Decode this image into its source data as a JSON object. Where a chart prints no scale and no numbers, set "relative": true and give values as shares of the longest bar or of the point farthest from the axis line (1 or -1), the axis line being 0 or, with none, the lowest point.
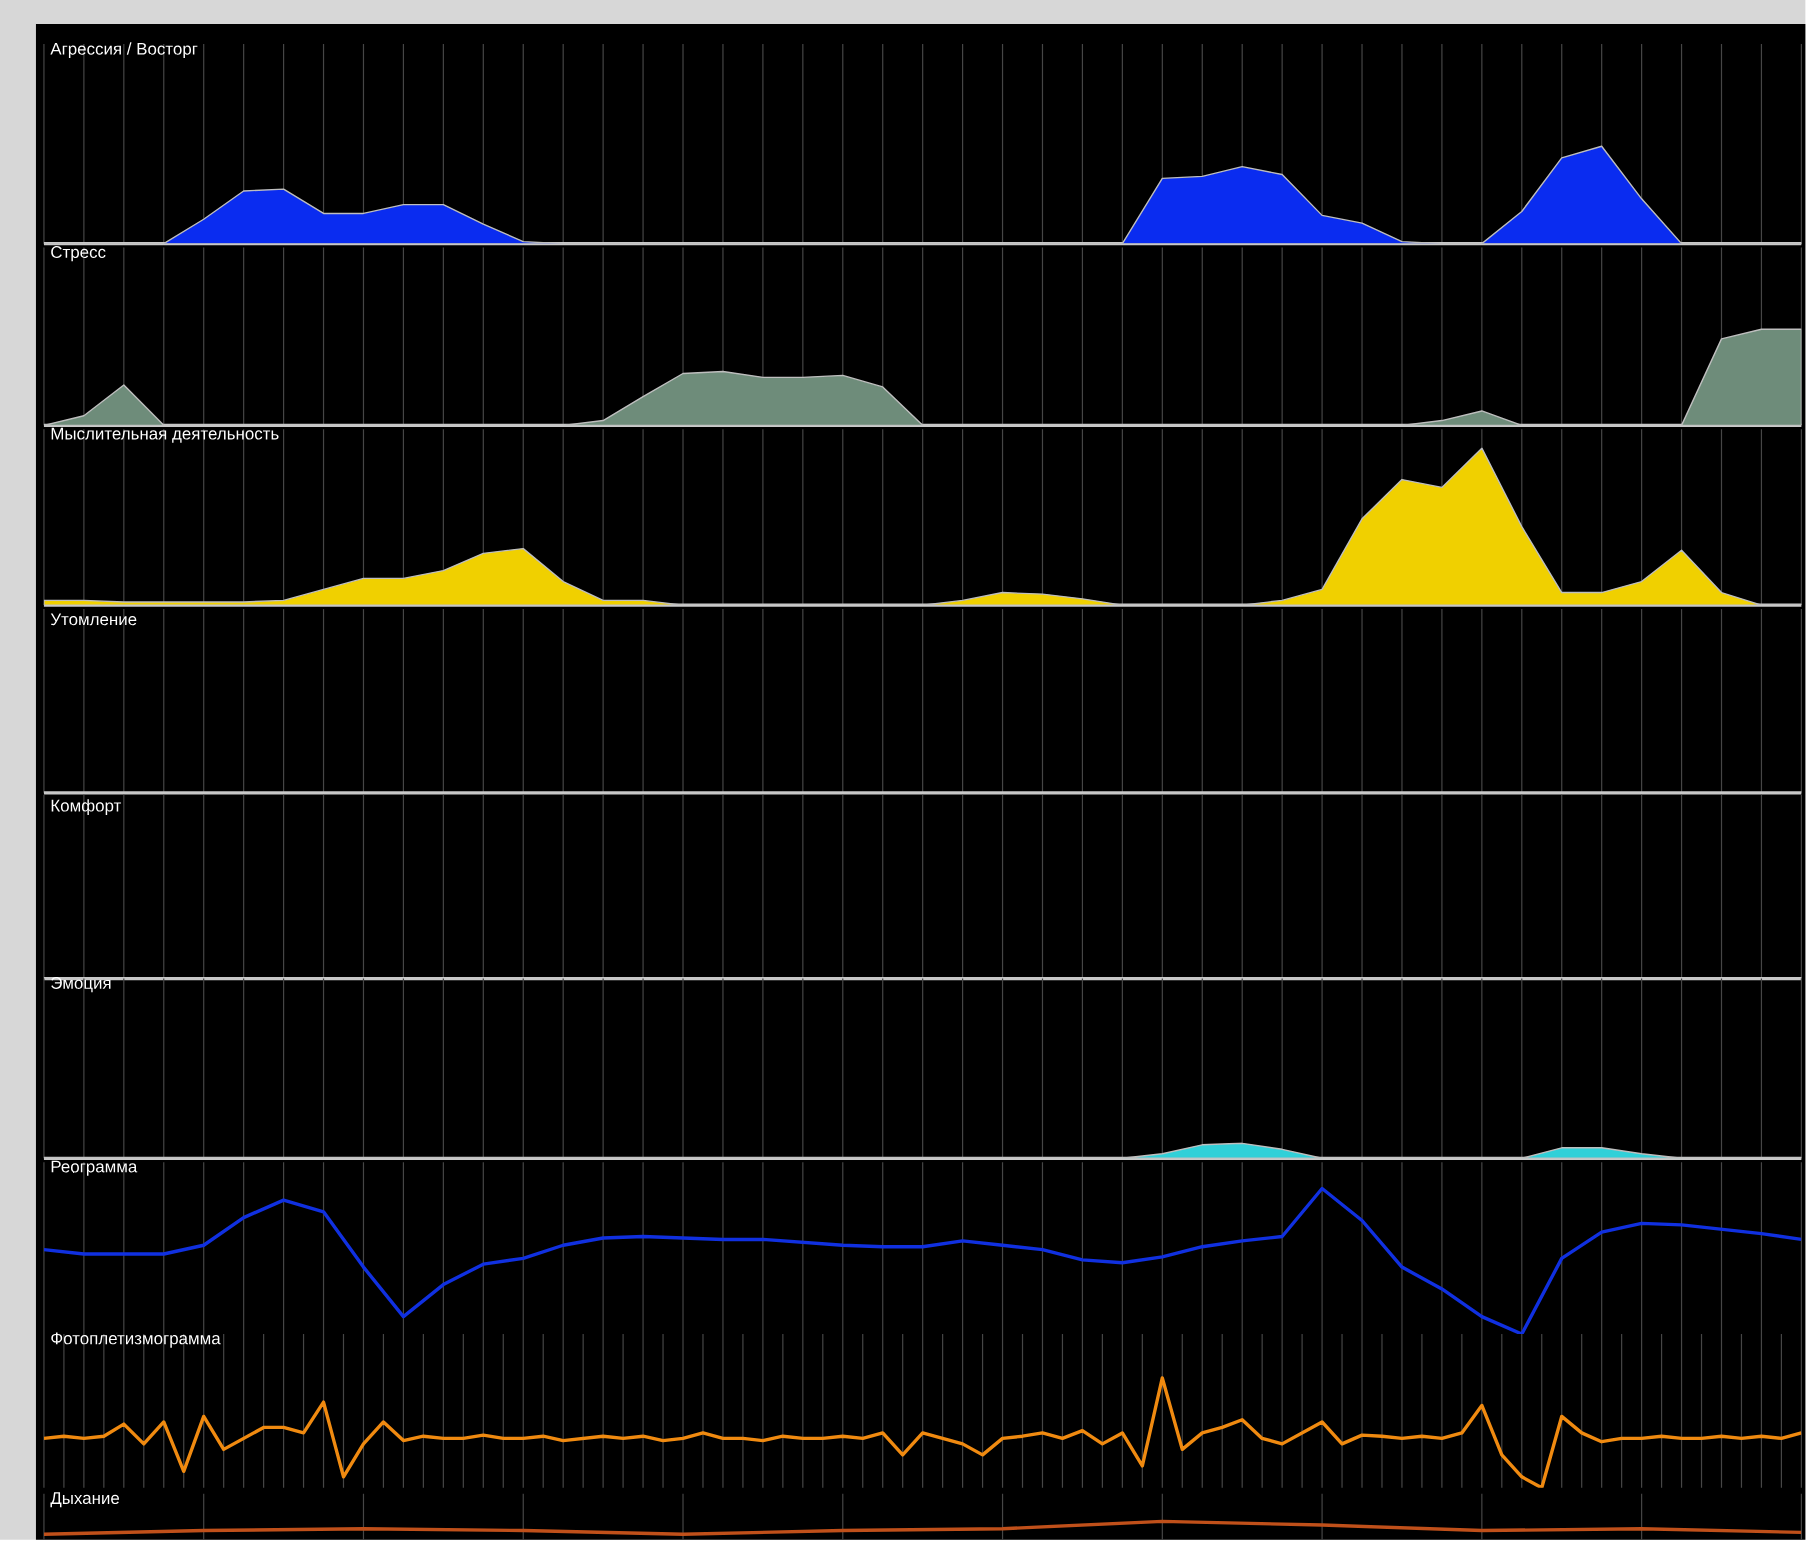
{
  "chart_data": [
    {
      "type": "area",
      "title": "Агрессия / Восторг",
      "relative": true,
      "grid": "x",
      "color": "#0a2cf0",
      "categories": [
        null,
        null,
        null,
        null,
        null,
        null,
        null,
        null,
        null,
        null,
        null,
        null,
        null,
        null,
        null,
        null,
        null,
        null,
        null,
        null,
        null,
        null,
        null,
        null,
        null,
        null,
        null,
        null,
        null,
        null,
        null,
        null,
        null,
        null,
        null,
        null,
        null,
        null,
        null,
        null,
        null,
        null,
        null,
        null,
        null
      ],
      "values": [
        0,
        0,
        0,
        0,
        0.25,
        0.54,
        0.56,
        0.31,
        0.31,
        0.4,
        0.4,
        0.2,
        0.02,
        0,
        0,
        0,
        0,
        0,
        0,
        0,
        0,
        0,
        0,
        0,
        0,
        0,
        0,
        0,
        0.67,
        0.69,
        0.79,
        0.71,
        0.29,
        0.21,
        0.02,
        0,
        0,
        0.33,
        0.88,
        1,
        0.46,
        0,
        0,
        0,
        0
      ]
    },
    {
      "type": "area",
      "title": "Стресс",
      "relative": true,
      "grid": "x",
      "color": "#6e8c7a",
      "categories": [
        null,
        null,
        null,
        null,
        null,
        null,
        null,
        null,
        null,
        null,
        null,
        null,
        null,
        null,
        null,
        null,
        null,
        null,
        null,
        null,
        null,
        null,
        null,
        null,
        null,
        null,
        null,
        null,
        null,
        null,
        null,
        null,
        null,
        null,
        null,
        null,
        null,
        null,
        null,
        null,
        null,
        null,
        null,
        null,
        null
      ],
      "values": [
        0,
        0.1,
        0.42,
        0,
        0,
        0,
        0,
        0,
        0,
        0,
        0,
        0,
        0,
        0,
        0.05,
        0.3,
        0.54,
        0.56,
        0.5,
        0.5,
        0.52,
        0.4,
        0,
        0,
        0,
        0,
        0,
        0,
        0,
        0,
        0,
        0,
        0,
        0,
        0,
        0.05,
        0.15,
        0,
        0,
        0,
        0,
        0,
        0.9,
        1,
        1
      ]
    },
    {
      "type": "area",
      "title": "Мыслительная деятельность",
      "relative": true,
      "grid": "x",
      "color": "#f0d000",
      "categories": [
        null,
        null,
        null,
        null,
        null,
        null,
        null,
        null,
        null,
        null,
        null,
        null,
        null,
        null,
        null,
        null,
        null,
        null,
        null,
        null,
        null,
        null,
        null,
        null,
        null,
        null,
        null,
        null,
        null,
        null,
        null,
        null,
        null,
        null,
        null,
        null,
        null,
        null,
        null,
        null,
        null,
        null,
        null,
        null,
        null
      ],
      "values": [
        0.03,
        0.03,
        0.02,
        0.02,
        0.02,
        0.02,
        0.03,
        0.1,
        0.17,
        0.17,
        0.22,
        0.33,
        0.36,
        0.15,
        0.03,
        0.03,
        0,
        0,
        0,
        0,
        0,
        0,
        0,
        0.03,
        0.08,
        0.07,
        0.04,
        0,
        0,
        0,
        0,
        0.03,
        0.1,
        0.55,
        0.8,
        0.75,
        1,
        0.5,
        0.08,
        0.08,
        0.15,
        0.35,
        0.08,
        0,
        0
      ]
    },
    {
      "type": "other",
      "title": "Утомление"
    },
    {
      "type": "other",
      "title": "Комфорт"
    },
    {
      "type": "area",
      "title": "Эмоция",
      "relative": true,
      "grid": "x",
      "color": "#30d0d8",
      "categories": [
        null,
        null,
        null,
        null,
        null,
        null,
        null,
        null,
        null,
        null,
        null,
        null,
        null,
        null,
        null,
        null,
        null,
        null,
        null,
        null,
        null,
        null,
        null,
        null,
        null,
        null,
        null,
        null,
        null,
        null,
        null,
        null,
        null,
        null,
        null,
        null,
        null,
        null,
        null,
        null,
        null,
        null,
        null,
        null,
        null
      ],
      "values": [
        0,
        0,
        0,
        0,
        0,
        0,
        0,
        0,
        0,
        0,
        0,
        0,
        0,
        0,
        0,
        0,
        0,
        0,
        0,
        0,
        0,
        0,
        0,
        0,
        0,
        0,
        0,
        0,
        0.3,
        0.9,
        1,
        0.6,
        0,
        0,
        0,
        0,
        0,
        0,
        0.7,
        0.7,
        0.3,
        0,
        0,
        0,
        0
      ]
    },
    {
      "type": "line",
      "title": "Реограмма",
      "relative": true,
      "grid": "x",
      "color": "#1030e0",
      "categories": [
        null,
        null,
        null,
        null,
        null,
        null,
        null,
        null,
        null,
        null,
        null,
        null,
        null,
        null,
        null,
        null,
        null,
        null,
        null,
        null,
        null,
        null,
        null,
        null,
        null,
        null,
        null,
        null,
        null,
        null,
        null,
        null,
        null,
        null,
        null,
        null,
        null,
        null,
        null,
        null,
        null,
        null,
        null,
        null,
        null
      ],
      "values": [
        0.58,
        0.55,
        0.55,
        0.55,
        0.61,
        0.8,
        0.92,
        0.84,
        0.46,
        0.12,
        0.34,
        0.48,
        0.52,
        0.61,
        0.66,
        0.67,
        0.66,
        0.65,
        0.65,
        0.63,
        0.61,
        0.6,
        0.6,
        0.64,
        0.61,
        0.58,
        0.51,
        0.49,
        0.53,
        0.6,
        0.64,
        0.67,
        1,
        0.78,
        0.46,
        0.31,
        0.12,
        0,
        0.52,
        0.7,
        0.76,
        0.75,
        0.72,
        0.69,
        0.65
      ]
    },
    {
      "type": "line",
      "title": "Фотоплетизмограмма",
      "relative": true,
      "grid": "x",
      "color": "#f08a10",
      "categories": [
        null,
        null,
        null,
        null,
        null,
        null,
        null,
        null,
        null,
        null,
        null,
        null,
        null,
        null,
        null,
        null,
        null,
        null,
        null,
        null,
        null,
        null,
        null,
        null,
        null,
        null,
        null,
        null,
        null,
        null,
        null,
        null,
        null,
        null,
        null,
        null,
        null,
        null,
        null,
        null,
        null,
        null,
        null,
        null,
        null,
        null,
        null,
        null,
        null,
        null,
        null,
        null,
        null,
        null,
        null,
        null,
        null,
        null,
        null,
        null,
        null,
        null,
        null,
        null,
        null,
        null,
        null,
        null,
        null,
        null,
        null,
        null,
        null,
        null,
        null,
        null,
        null,
        null,
        null,
        null,
        null,
        null,
        null,
        null,
        null,
        null,
        null,
        null,
        null
      ],
      "values": [
        0.45,
        0.47,
        0.45,
        0.47,
        0.58,
        0.4,
        0.6,
        0.15,
        0.65,
        0.35,
        0.45,
        0.55,
        0.55,
        0.5,
        0.78,
        0.1,
        0.4,
        0.6,
        0.43,
        0.47,
        0.45,
        0.45,
        0.48,
        0.45,
        0.45,
        0.47,
        0.43,
        0.45,
        0.47,
        0.45,
        0.47,
        0.43,
        0.45,
        0.5,
        0.45,
        0.45,
        0.43,
        0.47,
        0.45,
        0.45,
        0.47,
        0.45,
        0.5,
        0.3,
        0.5,
        0.45,
        0.4,
        0.3,
        0.45,
        0.47,
        0.5,
        0.45,
        0.52,
        0.4,
        0.5,
        0.2,
        1,
        0.35,
        0.5,
        0.55,
        0.62,
        0.45,
        0.4,
        0.5,
        0.6,
        0.4,
        0.48,
        0.47,
        0.45,
        0.47,
        0.45,
        0.5,
        0.75,
        0.3,
        0.1,
        0,
        0.65,
        0.5,
        0.42,
        0.45,
        0.45,
        0.47,
        0.45,
        0.45,
        0.47,
        0.45,
        0.47,
        0.45,
        0.5
      ]
    },
    {
      "type": "line",
      "title": "Дыхание",
      "relative": true,
      "grid": "x",
      "color": "#c0501a",
      "categories": [
        null,
        null,
        null,
        null,
        null,
        null,
        null,
        null,
        null,
        null,
        null,
        null
      ],
      "values": [
        0.3,
        0.5,
        0.6,
        0.5,
        0.3,
        0.5,
        0.6,
        1,
        0.8,
        0.5,
        0.6,
        0.4
      ]
    }
  ]
}
